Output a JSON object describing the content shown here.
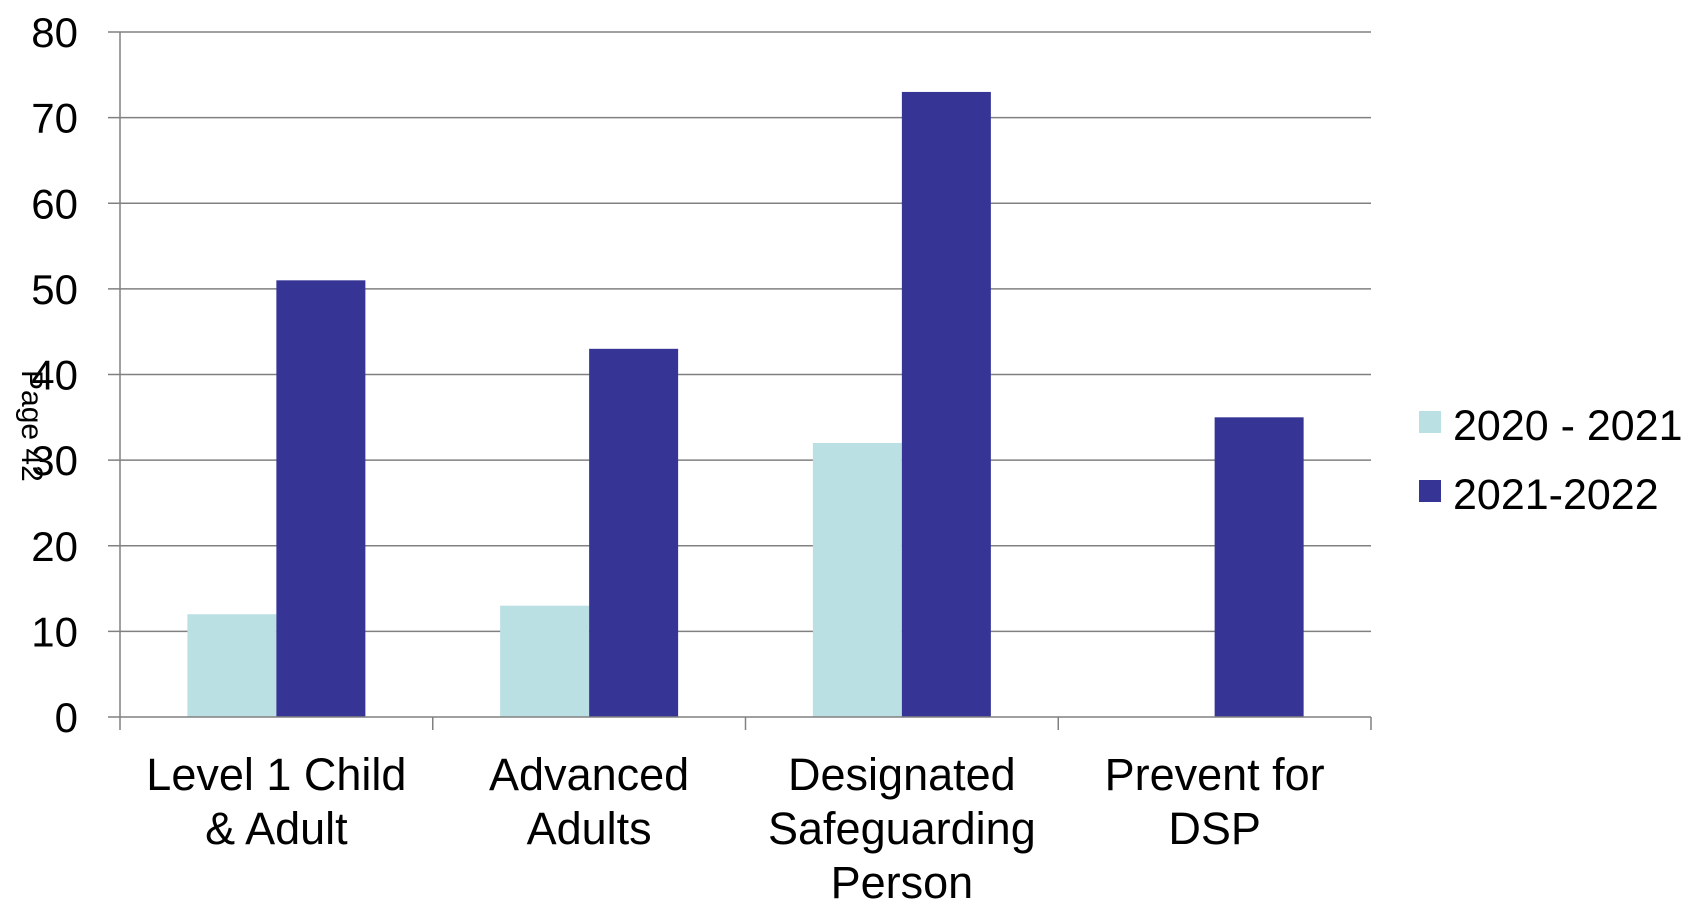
{
  "chart_data": {
    "type": "bar",
    "categories": [
      [
        "Level 1 Child",
        "& Adult"
      ],
      [
        "Advanced",
        "Adults"
      ],
      [
        "Designated",
        "Safeguarding",
        "Person"
      ],
      [
        "Prevent for",
        "DSP"
      ]
    ],
    "series": [
      {
        "name": "2020 - 2021",
        "values": [
          12,
          13,
          32,
          null
        ],
        "color": "#BBE0E3"
      },
      {
        "name": "2021-2022",
        "values": [
          51,
          43,
          73,
          35
        ],
        "color": "#363596"
      }
    ],
    "ylim": [
      0,
      80
    ],
    "yticks": [
      "0",
      "10",
      "20",
      "30",
      "40",
      "50",
      "60",
      "70",
      "80"
    ],
    "grid": true,
    "legend": "right",
    "gridline_color": "#808080"
  },
  "page_stamp": "Page 42"
}
